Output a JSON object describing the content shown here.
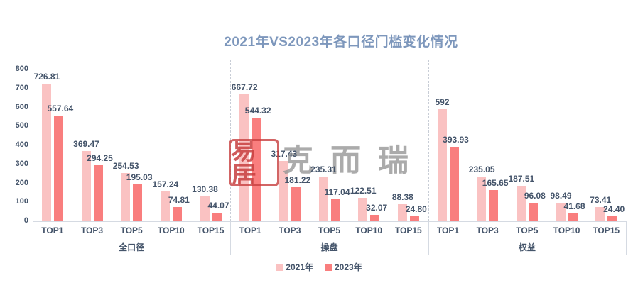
{
  "title": "2021年VS2023年各口径门槛变化情况",
  "watermark": {
    "seal_text": "易居",
    "brand_text": "克而瑞"
  },
  "legend": [
    {
      "label": "2021年",
      "color": "#fac2c2"
    },
    {
      "label": "2023年",
      "color": "#f97e7e"
    }
  ],
  "colors": {
    "series_2021": "#fac2c2",
    "series_2023": "#f97e7e",
    "label_text": "#44546a",
    "title_text": "#7d97bc",
    "axis_line": "#d5dae2",
    "separator_dashed": "#c8cdd6",
    "watermark_seal": "#c73e3e",
    "watermark_brand": "#969696"
  },
  "chart_data": {
    "type": "bar",
    "title": "2021年VS2023年各口径门槛变化情况",
    "xlabel": "",
    "ylabel": "",
    "y_axis": {
      "min": 0,
      "max": 800,
      "step": 100
    },
    "grid": false,
    "legend_position": "bottom",
    "series_names": [
      "2021年",
      "2023年"
    ],
    "groups": [
      {
        "label": "全口径",
        "categories": [
          "TOP1",
          "TOP3",
          "TOP5",
          "TOP10",
          "TOP15"
        ],
        "series": [
          {
            "name": "2021年",
            "values": [
              "726.81",
              "369.47",
              "254.53",
              "157.24",
              "130.38"
            ]
          },
          {
            "name": "2023年",
            "values": [
              "557.64",
              "294.25",
              "195.03",
              "74.81",
              "44.07"
            ]
          }
        ]
      },
      {
        "label": "操盘",
        "categories": [
          "TOP1",
          "TOP3",
          "TOP5",
          "TOP10",
          "TOP15"
        ],
        "series": [
          {
            "name": "2021年",
            "values": [
              "667.72",
              "317.43",
              "235.31",
              "122.51",
              "88.38"
            ]
          },
          {
            "name": "2023年",
            "values": [
              "544.32",
              "181.22",
              "117.04",
              "32.07",
              "24.80"
            ]
          }
        ]
      },
      {
        "label": "权益",
        "categories": [
          "TOP1",
          "TOP3",
          "TOP5",
          "TOP10",
          "TOP15"
        ],
        "series": [
          {
            "name": "2021年",
            "values": [
              "592",
              "235.05",
              "187.51",
              "98.49",
              "73.41"
            ]
          },
          {
            "name": "2023年",
            "values": [
              "393.93",
              "165.65",
              "96.08",
              "41.68",
              "24.40"
            ]
          }
        ]
      }
    ]
  }
}
